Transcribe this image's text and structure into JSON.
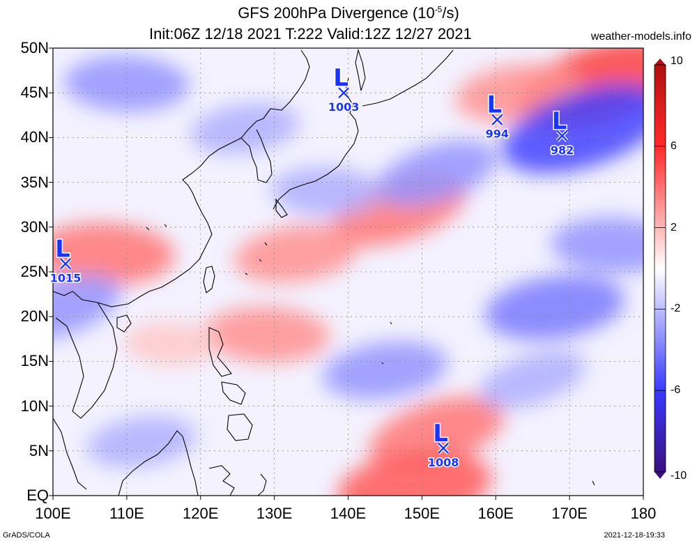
{
  "title": {
    "line1_prefix": "GFS 200hPa Divergence (10",
    "line1_exp": "-5",
    "line1_suffix": "/s)",
    "line2": "Init:06Z 12/18 2021 T:222 Valid:12Z 12/27 2021"
  },
  "site": "weather-models.info",
  "footer": {
    "left": "GrADS/COLA",
    "right": "2021-12-18-19:33"
  },
  "axes": {
    "lat_labels": [
      "EQ",
      "5N",
      "10N",
      "15N",
      "20N",
      "25N",
      "30N",
      "35N",
      "40N",
      "45N",
      "50N"
    ],
    "lon_labels": [
      "100E",
      "110E",
      "120E",
      "130E",
      "140E",
      "150E",
      "160E",
      "170E",
      "180"
    ],
    "lat_range": [
      0,
      50
    ],
    "lon_range": [
      100,
      180
    ]
  },
  "colorbar": {
    "labels": [
      "10",
      "6",
      "2",
      "-2",
      "-6",
      "-10"
    ],
    "range": [
      -10,
      10
    ],
    "colors": {
      "max": "#b01010",
      "high": "#ff2a2a",
      "mid": "#ffffff",
      "low": "#3a3aff",
      "min": "#3a1080"
    }
  },
  "lows": [
    {
      "label": "L",
      "pressure": "1003",
      "lon": 139.4,
      "lat": 45.0
    },
    {
      "label": "L",
      "pressure": "994",
      "lon": 160.2,
      "lat": 42.0
    },
    {
      "label": "L",
      "pressure": "982",
      "lon": 169.0,
      "lat": 40.2
    },
    {
      "label": "L",
      "pressure": "1015",
      "lon": 101.7,
      "lat": 25.9
    },
    {
      "label": "L",
      "pressure": "1008",
      "lon": 152.9,
      "lat": 5.3
    }
  ],
  "field_features": [
    {
      "lon": 147,
      "lat": 32,
      "value": 5
    },
    {
      "lon": 133,
      "lat": 27,
      "value": 4
    },
    {
      "lon": 107,
      "lat": 27,
      "value": 5
    },
    {
      "lon": 174,
      "lat": 46,
      "value": 7
    },
    {
      "lon": 163,
      "lat": 45,
      "value": 4
    },
    {
      "lon": 129,
      "lat": 18,
      "value": 4
    },
    {
      "lon": 152,
      "lat": 7,
      "value": 5
    },
    {
      "lon": 149,
      "lat": 1,
      "value": 6
    },
    {
      "lon": 116,
      "lat": 17,
      "value": 2
    },
    {
      "lon": 172,
      "lat": 41,
      "value": -7
    },
    {
      "lon": 168,
      "lat": 21,
      "value": -5
    },
    {
      "lon": 176,
      "lat": 28,
      "value": -4
    },
    {
      "lon": 152,
      "lat": 36,
      "value": -4
    },
    {
      "lon": 145,
      "lat": 14,
      "value": -4
    },
    {
      "lon": 110,
      "lat": 46,
      "value": -4
    },
    {
      "lon": 101,
      "lat": 21,
      "value": -4
    },
    {
      "lon": 112,
      "lat": 6,
      "value": -3
    },
    {
      "lon": 137,
      "lat": 34,
      "value": -3
    },
    {
      "lon": 165,
      "lat": 13,
      "value": -3
    },
    {
      "lon": 126,
      "lat": 41,
      "value": -3
    }
  ]
}
